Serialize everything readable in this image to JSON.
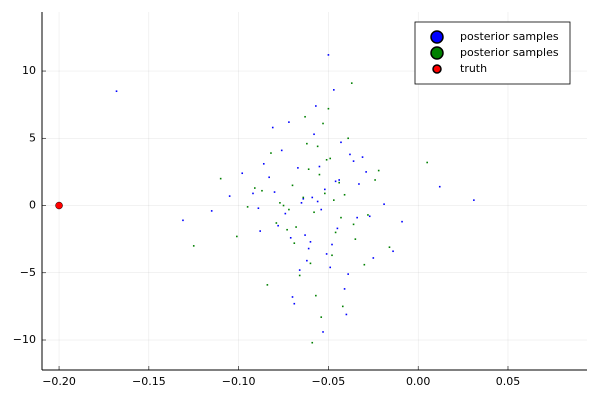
{
  "chart_data": {
    "type": "scatter",
    "xlim": [
      -0.2095,
      0.094
    ],
    "ylim": [
      -12.23,
      14.39
    ],
    "xticks": [
      {
        "value": -0.2,
        "label": "−0.20"
      },
      {
        "value": -0.15,
        "label": "−0.15"
      },
      {
        "value": -0.1,
        "label": "−0.10"
      },
      {
        "value": -0.05,
        "label": "−0.05"
      },
      {
        "value": 0,
        "label": "0.00"
      },
      {
        "value": 0.05,
        "label": "0.05"
      }
    ],
    "yticks": [
      {
        "value": -10,
        "label": "−10"
      },
      {
        "value": -5,
        "label": "−5"
      },
      0,
      5,
      10
    ],
    "grid": true,
    "legend": "top-right",
    "series": [
      {
        "name": "posterior samples",
        "color": "#0000ff",
        "x": [
          -0.052,
          -0.071,
          -0.038,
          -0.064,
          -0.049,
          -0.083,
          -0.027,
          -0.058,
          -0.045,
          -0.092,
          -0.061,
          -0.033,
          -0.076,
          -0.054,
          -0.041,
          -0.067,
          -0.019,
          -0.088,
          -0.057,
          -0.048,
          -0.105,
          -0.036,
          -0.062,
          -0.074,
          -0.044,
          -0.009,
          -0.081,
          -0.051,
          -0.029,
          -0.069,
          -0.115,
          -0.056,
          -0.039,
          -0.086,
          -0.047,
          0.012,
          -0.063,
          -0.072,
          -0.034,
          -0.053,
          -0.098,
          -0.025,
          -0.059,
          -0.078,
          -0.043,
          -0.066,
          -0.131,
          -0.05,
          0.031,
          -0.06,
          -0.046,
          -0.089,
          -0.031,
          -0.07,
          -0.055,
          -0.014,
          -0.08,
          -0.04,
          -0.065,
          -0.168
        ],
        "y": [
          1.2,
          -2.4,
          3.8,
          0.5,
          -4.6,
          2.1,
          -0.8,
          5.3,
          -1.7,
          0.9,
          -3.2,
          1.6,
          4.1,
          -0.3,
          -6.2,
          2.8,
          0.1,
          -1.9,
          7.4,
          -2.9,
          0.7,
          3.3,
          -4.1,
          -0.6,
          1.9,
          -1.2,
          5.8,
          -3.6,
          2.5,
          -7.3,
          -0.4,
          0.3,
          -5.1,
          3.1,
          8.6,
          1.4,
          -2.2,
          6.2,
          -0.9,
          -9.4,
          2.4,
          -3.9,
          0.6,
          -1.5,
          4.7,
          -4.8,
          -1.1,
          11.2,
          0.4,
          -2.7,
          1.8,
          -0.2,
          3.6,
          -6.8,
          2.9,
          -3.4,
          1.0,
          -8.1,
          0.2,
          8.5
        ]
      },
      {
        "name": "posterior samples",
        "color": "#008000",
        "x": [
          -0.058,
          -0.044,
          -0.069,
          -0.051,
          -0.077,
          -0.036,
          -0.062,
          -0.048,
          -0.087,
          -0.028,
          -0.055,
          -0.066,
          -0.041,
          -0.073,
          -0.053,
          -0.095,
          -0.022,
          -0.06,
          -0.047,
          -0.082,
          -0.035,
          -0.057,
          -0.07,
          -0.043,
          -0.11,
          -0.05,
          -0.016,
          -0.064,
          -0.079,
          -0.039,
          -0.054,
          -0.091,
          -0.03,
          -0.061,
          -0.072,
          -0.046,
          0.005,
          -0.084,
          -0.052,
          -0.037,
          -0.068,
          -0.125,
          -0.056,
          -0.042,
          -0.075,
          -0.024,
          -0.059,
          -0.049,
          -0.101,
          -0.063
        ],
        "y": [
          -0.5,
          1.7,
          -2.8,
          3.4,
          0.2,
          -1.4,
          4.6,
          -3.7,
          1.1,
          -0.7,
          2.3,
          -5.2,
          0.8,
          -1.8,
          6.1,
          -0.1,
          2.6,
          -4.3,
          0.4,
          3.9,
          -2.5,
          -6.7,
          1.5,
          -0.9,
          2.0,
          7.2,
          -3.1,
          0.6,
          -1.3,
          5.0,
          -8.3,
          1.3,
          -4.4,
          2.7,
          -0.3,
          -2.0,
          3.2,
          -5.9,
          0.9,
          9.1,
          -1.6,
          -3.0,
          4.4,
          -7.5,
          0.0,
          1.9,
          -10.2,
          3.5,
          -2.3,
          6.6
        ]
      },
      {
        "name": "truth",
        "color": "#ff0000",
        "x": [
          -0.2
        ],
        "y": [
          0
        ]
      }
    ]
  }
}
